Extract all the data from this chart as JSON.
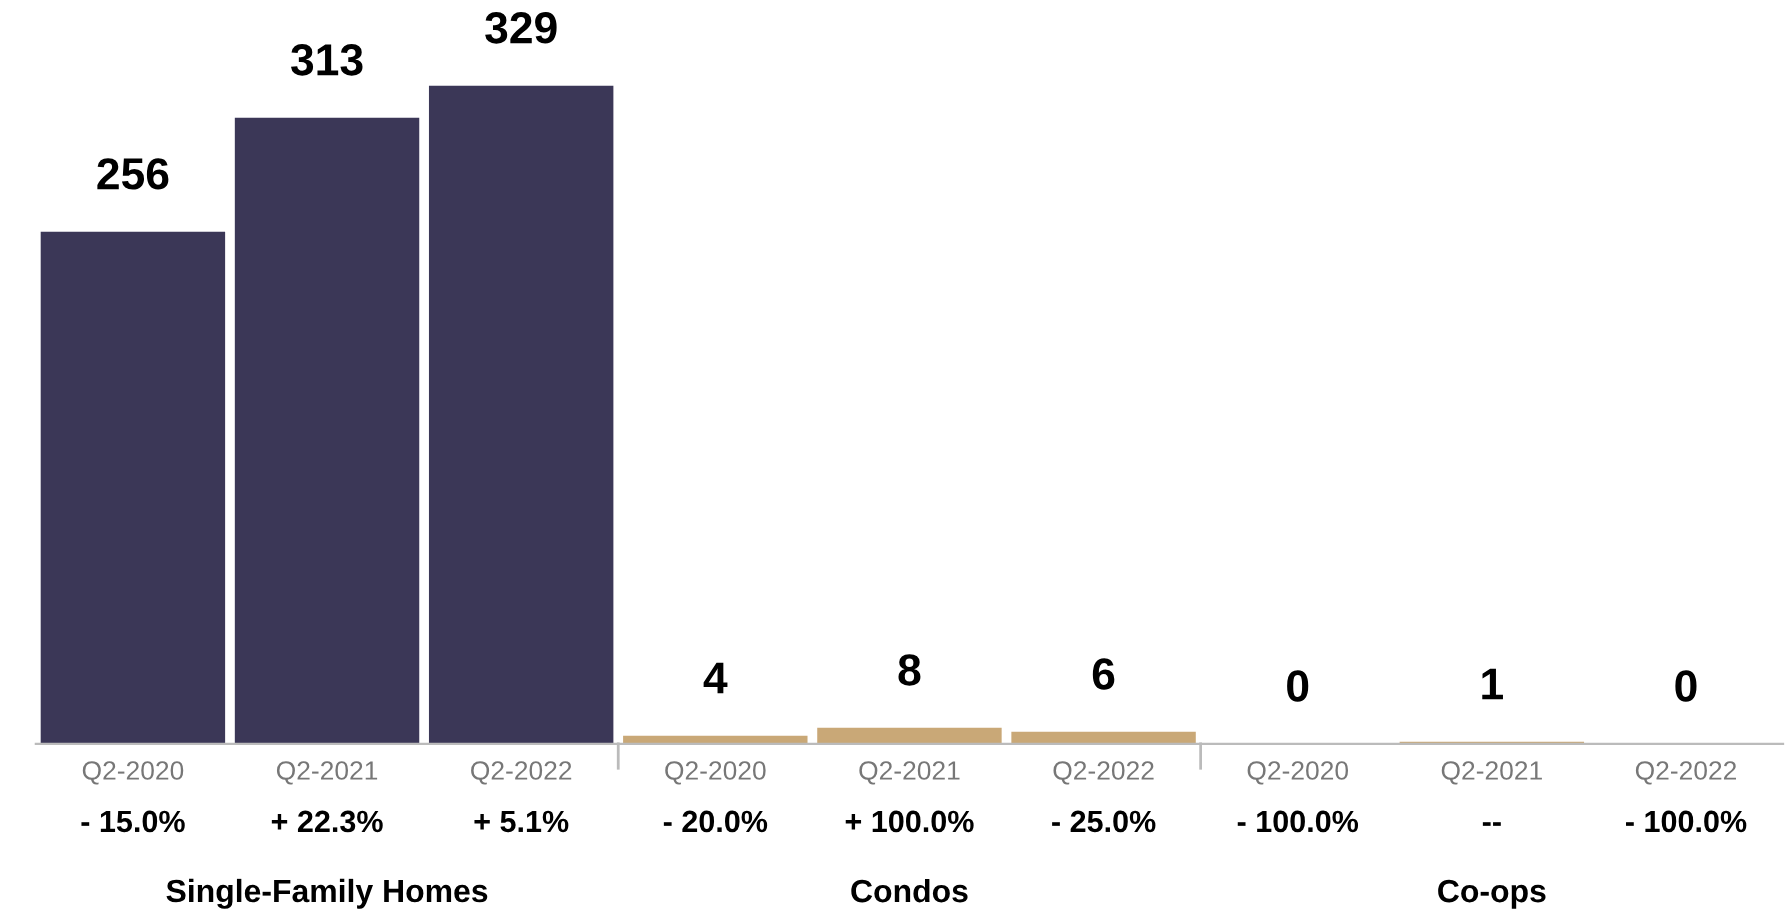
{
  "chart_data": {
    "type": "bar",
    "categories": [
      "Q2-2020",
      "Q2-2021",
      "Q2-2022",
      "Q2-2020",
      "Q2-2021",
      "Q2-2022",
      "Q2-2020",
      "Q2-2021",
      "Q2-2022"
    ],
    "values": [
      256,
      313,
      329,
      4,
      8,
      6,
      0,
      1,
      0
    ],
    "colors": [
      "#3b3757",
      "#3b3757",
      "#3b3757",
      "#c9a877",
      "#c9a877",
      "#c9a877",
      "#c9a877",
      "#c9a877",
      "#c9a877"
    ],
    "data_labels": true,
    "annotations": [
      "- 15.0%",
      "+ 22.3%",
      "+ 5.1%",
      "- 20.0%",
      "+ 100.0%",
      "- 25.0%",
      "- 100.0%",
      "--",
      "- 100.0%",
      "Single-Family Homes",
      "Condos",
      "Co-ops"
    ]
  }
}
